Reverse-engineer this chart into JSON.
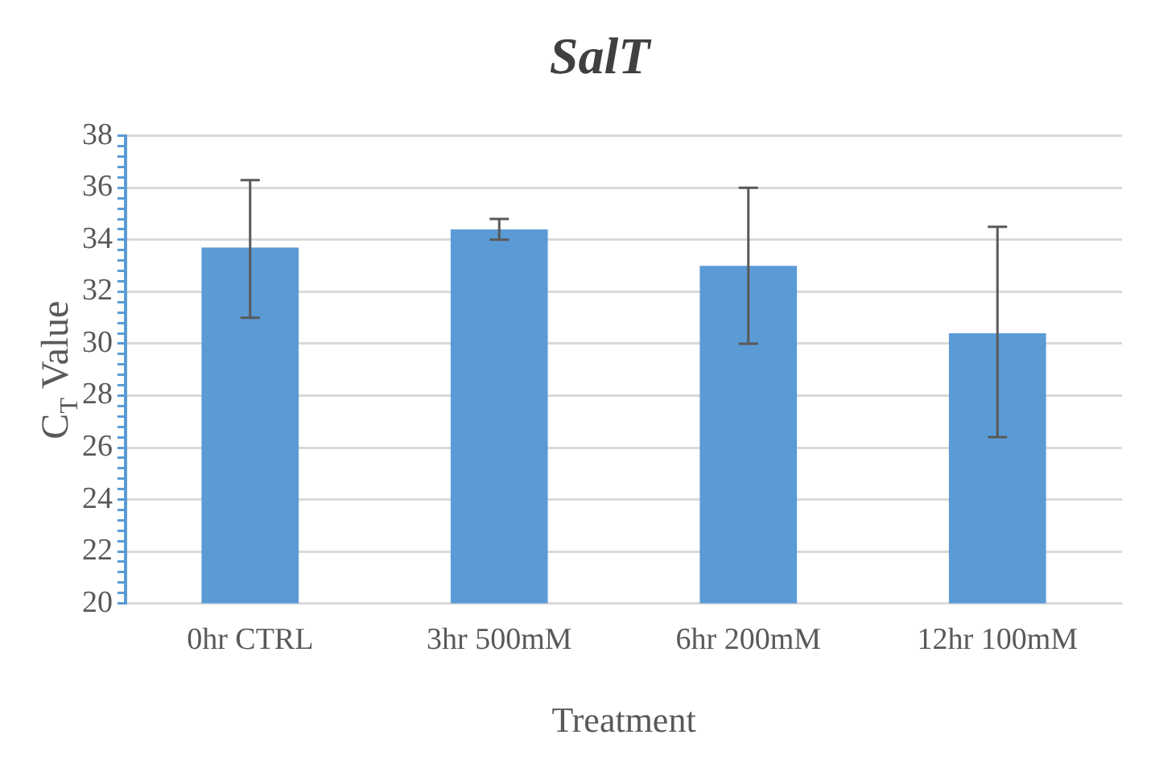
{
  "chart_data": {
    "type": "bar",
    "title": "SalT",
    "xlabel": "Treatment",
    "ylabel": "C$_{T}$ Value",
    "categories": [
      "0hr CTRL",
      "3hr 500mM",
      "6hr 200mM",
      "12hr 100mM"
    ],
    "values": [
      33.7,
      34.4,
      33.0,
      30.4
    ],
    "color": "#5b9bd5",
    "errors": [
      [
        31.0,
        36.3
      ],
      [
        34.0,
        34.8
      ],
      [
        30.0,
        36.0
      ],
      [
        26.4,
        34.5
      ]
    ],
    "ylim": [
      20,
      38
    ],
    "yticks": [
      20,
      {
        "value": 20.4,
        "label": null
      },
      {
        "value": 20.8,
        "label": null
      },
      {
        "value": 21.2,
        "label": null
      },
      {
        "value": 21.6,
        "label": null
      },
      22,
      {
        "value": 22.4,
        "label": null
      },
      {
        "value": 22.8,
        "label": null
      },
      {
        "value": 23.2,
        "label": null
      },
      {
        "value": 23.6,
        "label": null
      },
      24,
      {
        "value": 24.4,
        "label": null
      },
      {
        "value": 24.8,
        "label": null
      },
      {
        "value": 25.2,
        "label": null
      },
      {
        "value": 25.6,
        "label": null
      },
      26,
      {
        "value": 26.4,
        "label": null
      },
      {
        "value": 26.8,
        "label": null
      },
      {
        "value": 27.2,
        "label": null
      },
      {
        "value": 27.6,
        "label": null
      },
      28,
      {
        "value": 28.4,
        "label": null
      },
      {
        "value": 28.8,
        "label": null
      },
      {
        "value": 29.2,
        "label": null
      },
      {
        "value": 29.6,
        "label": null
      },
      30,
      {
        "value": 30.4,
        "label": null
      },
      {
        "value": 30.8,
        "label": null
      },
      {
        "value": 31.2,
        "label": null
      },
      {
        "value": 31.6,
        "label": null
      },
      32,
      {
        "value": 32.4,
        "label": null
      },
      {
        "value": 32.8,
        "label": null
      },
      {
        "value": 33.2,
        "label": null
      },
      {
        "value": 33.6,
        "label": null
      },
      34,
      {
        "value": 34.4,
        "label": null
      },
      {
        "value": 34.8,
        "label": null
      },
      {
        "value": 35.2,
        "label": null
      },
      {
        "value": 35.6,
        "label": null
      },
      36,
      {
        "value": 36.4,
        "label": null
      },
      {
        "value": 36.8,
        "label": null
      },
      {
        "value": 37.2,
        "label": null
      },
      {
        "value": 37.6,
        "label": null
      },
      38
    ],
    "grid": "y",
    "legend": false
  }
}
